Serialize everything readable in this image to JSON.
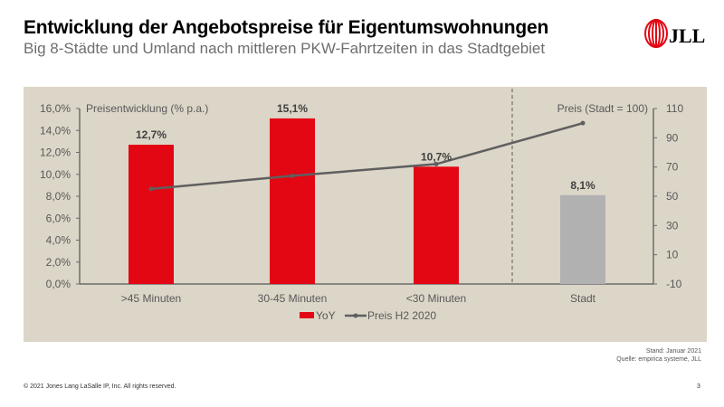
{
  "header": {
    "title": "Entwicklung der Angebotspreise für Eigentumswohnungen",
    "subtitle": "Big 8-Städte und Umland nach mittleren PKW-Fahrtzeiten in das Stadtgebiet",
    "logo_text": "JLL"
  },
  "colors": {
    "bar_primary": "#e30613",
    "bar_city": "#b1b1b1",
    "line": "#5f5f5f",
    "panel_bg": "#dcd6c8",
    "axis_text": "#595959",
    "logo_red": "#e30613"
  },
  "chart_data": {
    "type": "bar",
    "categories": [
      ">45 Minuten",
      "30-45 Minuten",
      "<30 Minuten",
      "Stadt"
    ],
    "series": [
      {
        "name": "YoY",
        "type": "bar",
        "axis": "left",
        "values": [
          12.7,
          15.1,
          10.7,
          8.1
        ],
        "labels": [
          "12,7%",
          "15,1%",
          "10,7%",
          "8,1%"
        ]
      },
      {
        "name": "Preis H2 2020",
        "type": "line",
        "axis": "right",
        "values": [
          55,
          64,
          72,
          100
        ]
      }
    ],
    "left_axis": {
      "label": "Preisentwicklung  (% p.a.)",
      "ylim": [
        0,
        16
      ],
      "ticks": [
        "0,0%",
        "2,0%",
        "4,0%",
        "6,0%",
        "8,0%",
        "10,0%",
        "12,0%",
        "14,0%",
        "16,0%"
      ],
      "tick_values": [
        0,
        2,
        4,
        6,
        8,
        10,
        12,
        14,
        16
      ]
    },
    "right_axis": {
      "label": "Preis (Stadt = 100)",
      "ylim": [
        -10,
        110
      ],
      "ticks": [
        "-10",
        "10",
        "30",
        "50",
        "70",
        "90",
        "110"
      ],
      "tick_values": [
        -10,
        10,
        30,
        50,
        70,
        90,
        110
      ]
    },
    "separator": "dashed line between <30 Minuten and Stadt",
    "grid": false,
    "legend": {
      "position": "bottom-center",
      "entries": [
        "YoY",
        "Preis H2 2020"
      ]
    }
  },
  "source": {
    "line1": "Stand: Januar 2021",
    "line2": "Quelle: empirica systeme, JLL"
  },
  "footer": {
    "copyright": "© 2021 Jones Lang LaSalle IP, Inc. All rights reserved.",
    "page_number": "3"
  }
}
